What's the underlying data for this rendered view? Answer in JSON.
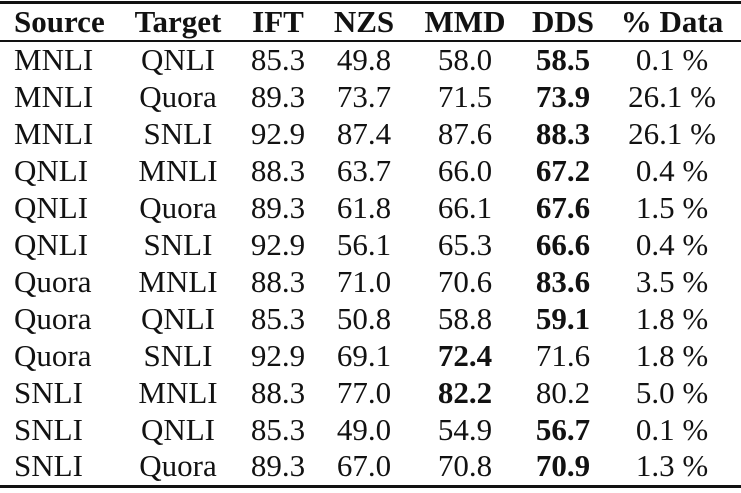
{
  "table": {
    "columns": [
      {
        "key": "source",
        "label": "Source"
      },
      {
        "key": "target",
        "label": "Target"
      },
      {
        "key": "ift",
        "label": "IFT"
      },
      {
        "key": "nzs",
        "label": "NZS"
      },
      {
        "key": "mmd",
        "label": "MMD"
      },
      {
        "key": "dds",
        "label": "DDS"
      },
      {
        "key": "pct_data",
        "label": "% Data"
      }
    ],
    "rows": [
      {
        "source": "MNLI",
        "target": "QNLI",
        "ift": "85.3",
        "nzs": "49.8",
        "mmd": "58.0",
        "dds": "58.5",
        "pct_data": "0.1 %",
        "bold": [
          "dds"
        ]
      },
      {
        "source": "MNLI",
        "target": "Quora",
        "ift": "89.3",
        "nzs": "73.7",
        "mmd": "71.5",
        "dds": "73.9",
        "pct_data": "26.1 %",
        "bold": [
          "dds"
        ]
      },
      {
        "source": "MNLI",
        "target": "SNLI",
        "ift": "92.9",
        "nzs": "87.4",
        "mmd": "87.6",
        "dds": "88.3",
        "pct_data": "26.1 %",
        "bold": [
          "dds"
        ]
      },
      {
        "source": "QNLI",
        "target": "MNLI",
        "ift": "88.3",
        "nzs": "63.7",
        "mmd": "66.0",
        "dds": "67.2",
        "pct_data": "0.4 %",
        "bold": [
          "dds"
        ]
      },
      {
        "source": "QNLI",
        "target": "Quora",
        "ift": "89.3",
        "nzs": "61.8",
        "mmd": "66.1",
        "dds": "67.6",
        "pct_data": "1.5 %",
        "bold": [
          "dds"
        ]
      },
      {
        "source": "QNLI",
        "target": "SNLI",
        "ift": "92.9",
        "nzs": "56.1",
        "mmd": "65.3",
        "dds": "66.6",
        "pct_data": "0.4 %",
        "bold": [
          "dds"
        ]
      },
      {
        "source": "Quora",
        "target": "MNLI",
        "ift": "88.3",
        "nzs": "71.0",
        "mmd": "70.6",
        "dds": "83.6",
        "pct_data": "3.5 %",
        "bold": [
          "dds"
        ]
      },
      {
        "source": "Quora",
        "target": "QNLI",
        "ift": "85.3",
        "nzs": "50.8",
        "mmd": "58.8",
        "dds": "59.1",
        "pct_data": "1.8 %",
        "bold": [
          "dds"
        ]
      },
      {
        "source": "Quora",
        "target": "SNLI",
        "ift": "92.9",
        "nzs": "69.1",
        "mmd": "72.4",
        "dds": "71.6",
        "pct_data": "1.8 %",
        "bold": [
          "mmd"
        ]
      },
      {
        "source": "SNLI",
        "target": "MNLI",
        "ift": "88.3",
        "nzs": "77.0",
        "mmd": "82.2",
        "dds": "80.2",
        "pct_data": "5.0 %",
        "bold": [
          "mmd"
        ]
      },
      {
        "source": "SNLI",
        "target": "QNLI",
        "ift": "85.3",
        "nzs": "49.0",
        "mmd": "54.9",
        "dds": "56.7",
        "pct_data": "0.1 %",
        "bold": [
          "dds"
        ]
      },
      {
        "source": "SNLI",
        "target": "Quora",
        "ift": "89.3",
        "nzs": "67.0",
        "mmd": "70.8",
        "dds": "70.9",
        "pct_data": "1.3 %",
        "bold": [
          "dds"
        ]
      }
    ]
  },
  "colors": {
    "text": "#121212",
    "rule": "#121212",
    "background": "#ffffff"
  }
}
